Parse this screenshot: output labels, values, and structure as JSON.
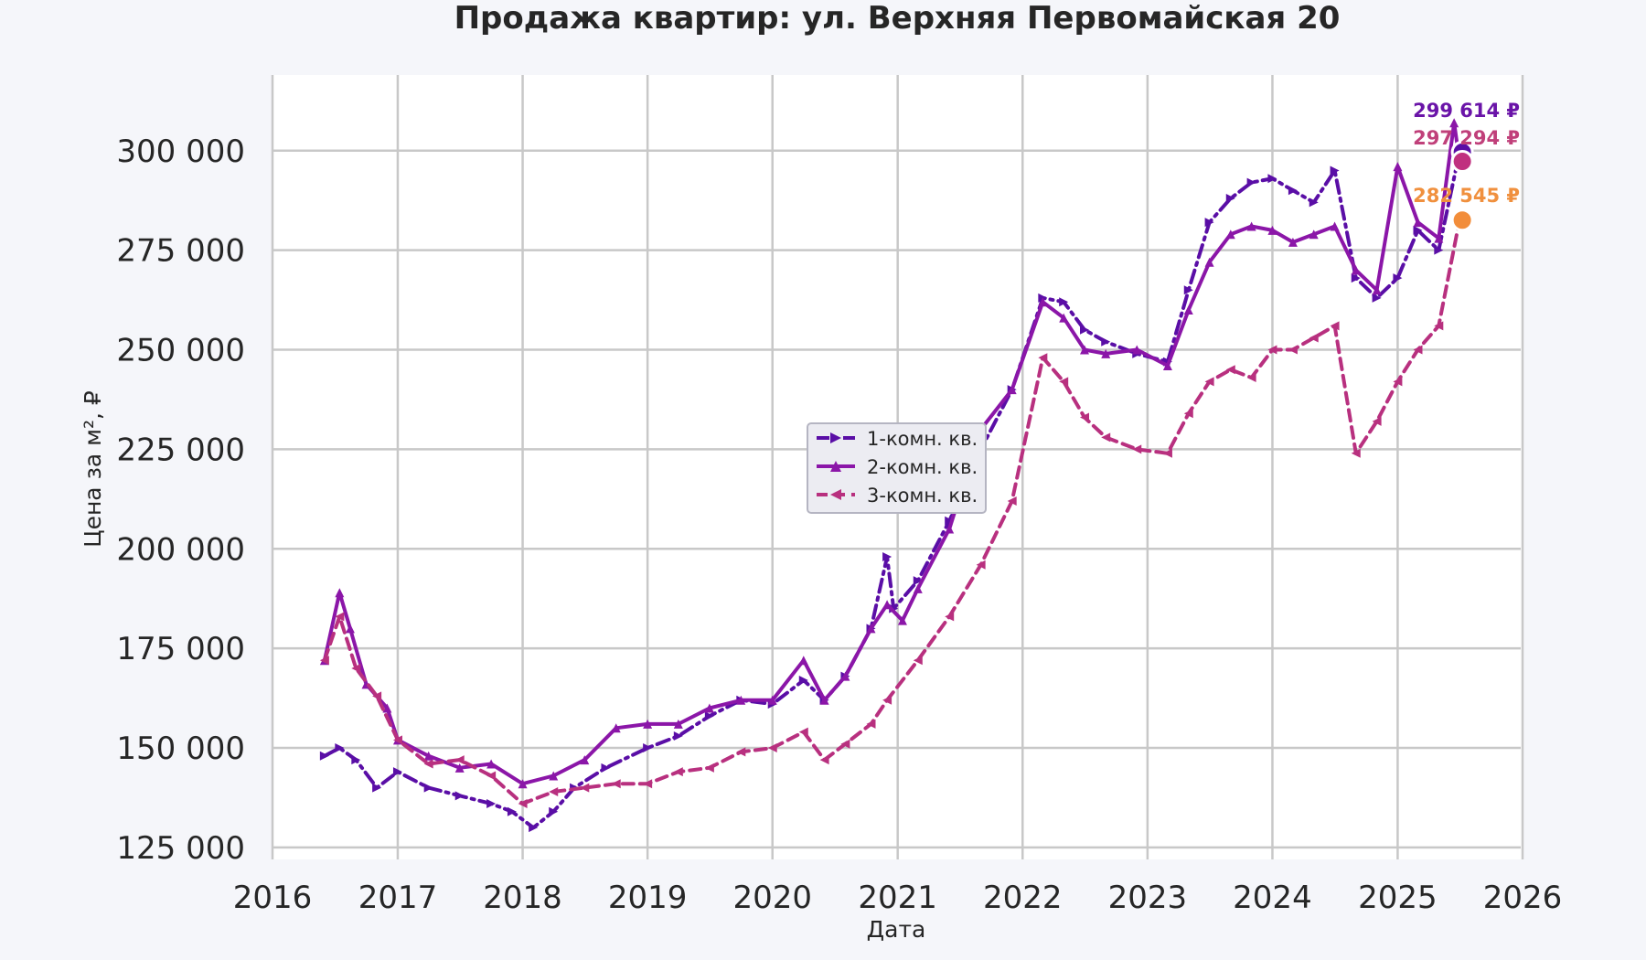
{
  "chart_data": {
    "type": "line",
    "title": "Продажа квартир: ул. Верхняя Первомайская 20",
    "xlabel": "Дата",
    "ylabel": "Цена за м², ₽",
    "xlim": [
      "2016-01-01",
      "2026-01-01"
    ],
    "ylim": [
      122000,
      319000
    ],
    "grid": true,
    "legend_position": "center",
    "x_ticks": [
      "2016",
      "2017",
      "2018",
      "2019",
      "2020",
      "2021",
      "2022",
      "2023",
      "2024",
      "2025",
      "2026"
    ],
    "y_ticks": [
      125000,
      150000,
      175000,
      200000,
      225000,
      250000,
      275000,
      300000
    ],
    "y_tick_labels": [
      "125 000",
      "150 000",
      "175 000",
      "200 000",
      "225 000",
      "250 000",
      "275 000",
      "300 000"
    ],
    "series": [
      {
        "name": "1-комн. кв.",
        "color": "#5a0ea6",
        "marker": "right-triangle",
        "style": "dash-dot",
        "end_label": "299 614 ₽",
        "end_value": 299614,
        "points": [
          [
            "2016-06-01",
            148000
          ],
          [
            "2016-07-15",
            150000
          ],
          [
            "2016-09-01",
            147000
          ],
          [
            "2016-11-01",
            140000
          ],
          [
            "2017-01-01",
            144000
          ],
          [
            "2017-04-01",
            140000
          ],
          [
            "2017-07-01",
            138000
          ],
          [
            "2017-10-01",
            136000
          ],
          [
            "2017-12-01",
            134000
          ],
          [
            "2018-02-01",
            130000
          ],
          [
            "2018-04-01",
            134000
          ],
          [
            "2018-06-01",
            140000
          ],
          [
            "2018-09-01",
            145000
          ],
          [
            "2019-01-01",
            150000
          ],
          [
            "2019-04-01",
            153000
          ],
          [
            "2019-07-01",
            158000
          ],
          [
            "2019-10-01",
            162000
          ],
          [
            "2020-01-01",
            161000
          ],
          [
            "2020-04-01",
            167000
          ],
          [
            "2020-06-01",
            162000
          ],
          [
            "2020-08-01",
            168000
          ],
          [
            "2020-10-15",
            180000
          ],
          [
            "2020-12-01",
            198000
          ],
          [
            "2020-12-20",
            185000
          ],
          [
            "2021-03-01",
            192000
          ],
          [
            "2021-06-01",
            207000
          ],
          [
            "2021-09-01",
            225000
          ],
          [
            "2021-12-01",
            240000
          ],
          [
            "2022-03-01",
            263000
          ],
          [
            "2022-05-01",
            262000
          ],
          [
            "2022-07-01",
            255000
          ],
          [
            "2022-09-01",
            252000
          ],
          [
            "2022-12-01",
            249000
          ],
          [
            "2023-03-01",
            247000
          ],
          [
            "2023-05-01",
            265000
          ],
          [
            "2023-07-01",
            282000
          ],
          [
            "2023-09-01",
            288000
          ],
          [
            "2023-11-01",
            292000
          ],
          [
            "2024-01-01",
            293000
          ],
          [
            "2024-03-01",
            290000
          ],
          [
            "2024-05-01",
            287000
          ],
          [
            "2024-07-01",
            295000
          ],
          [
            "2024-09-01",
            268000
          ],
          [
            "2024-11-01",
            263000
          ],
          [
            "2025-01-01",
            268000
          ],
          [
            "2025-03-01",
            280000
          ],
          [
            "2025-05-01",
            275000
          ],
          [
            "2025-07-01",
            299614
          ]
        ]
      },
      {
        "name": "2-комн. кв.",
        "color": "#8b16a8",
        "marker": "up-triangle",
        "style": "solid",
        "end_label": "297 294 ₽",
        "end_value": 297294,
        "points": [
          [
            "2016-06-01",
            172000
          ],
          [
            "2016-07-15",
            189000
          ],
          [
            "2016-08-15",
            180000
          ],
          [
            "2016-10-01",
            166000
          ],
          [
            "2016-12-01",
            160000
          ],
          [
            "2017-01-01",
            152000
          ],
          [
            "2017-04-01",
            148000
          ],
          [
            "2017-07-01",
            145000
          ],
          [
            "2017-10-01",
            146000
          ],
          [
            "2018-01-01",
            141000
          ],
          [
            "2018-04-01",
            143000
          ],
          [
            "2018-07-01",
            147000
          ],
          [
            "2018-10-01",
            155000
          ],
          [
            "2019-01-01",
            156000
          ],
          [
            "2019-04-01",
            156000
          ],
          [
            "2019-07-01",
            160000
          ],
          [
            "2019-10-01",
            162000
          ],
          [
            "2020-01-01",
            162000
          ],
          [
            "2020-04-01",
            172000
          ],
          [
            "2020-06-01",
            162000
          ],
          [
            "2020-08-01",
            168000
          ],
          [
            "2020-10-15",
            180000
          ],
          [
            "2020-12-01",
            186000
          ],
          [
            "2021-01-15",
            182000
          ],
          [
            "2021-03-01",
            190000
          ],
          [
            "2021-06-01",
            205000
          ],
          [
            "2021-09-01",
            230000
          ],
          [
            "2021-12-01",
            240000
          ],
          [
            "2022-03-01",
            262000
          ],
          [
            "2022-05-01",
            258000
          ],
          [
            "2022-07-01",
            250000
          ],
          [
            "2022-09-01",
            249000
          ],
          [
            "2022-12-01",
            250000
          ],
          [
            "2023-03-01",
            246000
          ],
          [
            "2023-05-01",
            260000
          ],
          [
            "2023-07-01",
            272000
          ],
          [
            "2023-09-01",
            279000
          ],
          [
            "2023-11-01",
            281000
          ],
          [
            "2024-01-01",
            280000
          ],
          [
            "2024-03-01",
            277000
          ],
          [
            "2024-05-01",
            279000
          ],
          [
            "2024-07-01",
            281000
          ],
          [
            "2024-09-01",
            270000
          ],
          [
            "2024-11-01",
            265000
          ],
          [
            "2025-01-01",
            296000
          ],
          [
            "2025-03-01",
            282000
          ],
          [
            "2025-05-01",
            278000
          ],
          [
            "2025-06-15",
            307000
          ],
          [
            "2025-07-01",
            297294
          ]
        ]
      },
      {
        "name": "3-комн. кв.",
        "color": "#b8307f",
        "marker": "left-triangle",
        "style": "dashed",
        "end_label": "282 545 ₽",
        "end_value": 282545,
        "points": [
          [
            "2016-06-01",
            172000
          ],
          [
            "2016-07-15",
            183000
          ],
          [
            "2016-09-01",
            170000
          ],
          [
            "2016-11-01",
            163000
          ],
          [
            "2017-01-01",
            152000
          ],
          [
            "2017-04-01",
            146000
          ],
          [
            "2017-07-01",
            147000
          ],
          [
            "2017-10-01",
            143000
          ],
          [
            "2018-01-01",
            136000
          ],
          [
            "2018-04-01",
            139000
          ],
          [
            "2018-07-01",
            140000
          ],
          [
            "2018-10-01",
            141000
          ],
          [
            "2019-01-01",
            141000
          ],
          [
            "2019-04-01",
            144000
          ],
          [
            "2019-07-01",
            145000
          ],
          [
            "2019-10-01",
            149000
          ],
          [
            "2020-01-01",
            150000
          ],
          [
            "2020-04-01",
            154000
          ],
          [
            "2020-06-01",
            147000
          ],
          [
            "2020-08-01",
            151000
          ],
          [
            "2020-10-15",
            156000
          ],
          [
            "2020-12-01",
            162000
          ],
          [
            "2021-03-01",
            172000
          ],
          [
            "2021-06-01",
            183000
          ],
          [
            "2021-09-01",
            196000
          ],
          [
            "2021-12-01",
            212000
          ],
          [
            "2022-03-01",
            248000
          ],
          [
            "2022-05-01",
            242000
          ],
          [
            "2022-07-01",
            233000
          ],
          [
            "2022-09-01",
            228000
          ],
          [
            "2022-12-01",
            225000
          ],
          [
            "2023-03-01",
            224000
          ],
          [
            "2023-05-01",
            234000
          ],
          [
            "2023-07-01",
            242000
          ],
          [
            "2023-09-01",
            245000
          ],
          [
            "2023-11-01",
            243000
          ],
          [
            "2024-01-01",
            250000
          ],
          [
            "2024-03-01",
            250000
          ],
          [
            "2024-05-01",
            253000
          ],
          [
            "2024-07-01",
            256000
          ],
          [
            "2024-09-01",
            224000
          ],
          [
            "2024-11-01",
            232000
          ],
          [
            "2025-01-01",
            242000
          ],
          [
            "2025-03-01",
            250000
          ],
          [
            "2025-05-01",
            256000
          ],
          [
            "2025-07-01",
            282545
          ]
        ]
      }
    ]
  }
}
